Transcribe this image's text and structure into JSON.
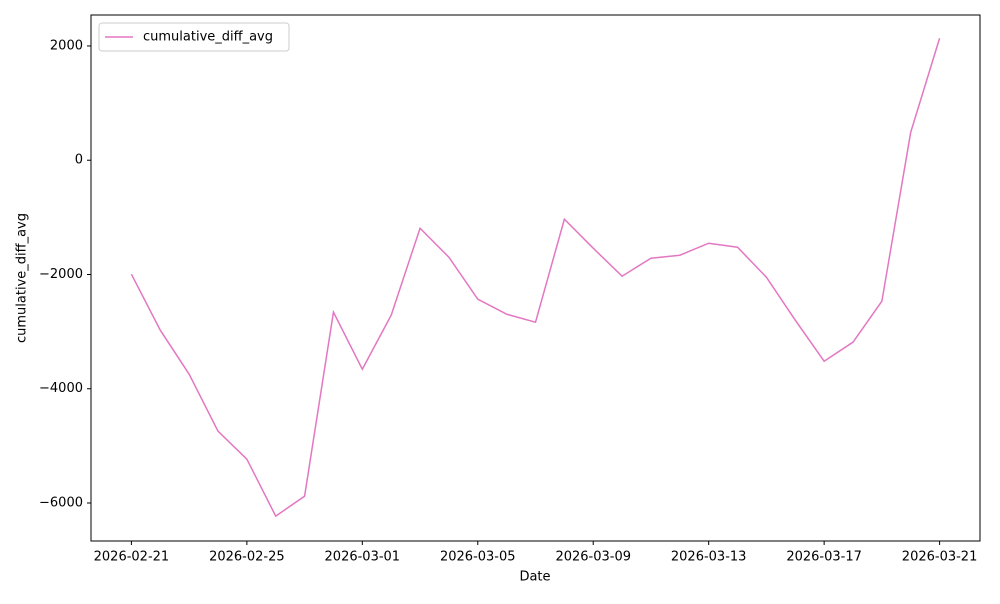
{
  "chart_data": {
    "type": "line",
    "x_label": "Date",
    "y_label": "cumulative_diff_avg",
    "x": [
      "2026-02-21",
      "2026-02-22",
      "2026-02-23",
      "2026-02-24",
      "2026-02-25",
      "2026-02-26",
      "2026-02-27",
      "2026-02-28",
      "2026-03-01",
      "2026-03-02",
      "2026-03-03",
      "2026-03-04",
      "2026-03-05",
      "2026-03-06",
      "2026-03-07",
      "2026-03-08",
      "2026-03-09",
      "2026-03-10",
      "2026-03-11",
      "2026-03-12",
      "2026-03-13",
      "2026-03-14",
      "2026-03-15",
      "2026-03-16",
      "2026-03-17",
      "2026-03-18",
      "2026-03-19",
      "2026-03-20",
      "2026-03-21"
    ],
    "series": [
      {
        "name": "cumulative_diff_avg",
        "color": "#e377c2",
        "values": [
          -1995,
          -2975,
          -3745,
          -4743,
          -5233,
          -6230,
          -5880,
          -2660,
          -3658,
          -2713,
          -1190,
          -1698,
          -2433,
          -2695,
          -2835,
          -1033,
          -1540,
          -2030,
          -1715,
          -1663,
          -1453,
          -1523,
          -2048,
          -2800,
          -3518,
          -3185,
          -2468,
          490,
          2135
        ]
      }
    ],
    "xlim": [
      "2026-02-19T14:24:00Z",
      "2026-03-22T09:36:00Z"
    ],
    "xticks": [
      "2026-02-21",
      "2026-02-25",
      "2026-03-01",
      "2026-03-05",
      "2026-03-09",
      "2026-03-13",
      "2026-03-17",
      "2026-03-21"
    ],
    "ylim": [
      -6665,
      2542
    ],
    "yticks": [
      {
        "value": -6000,
        "label": "−6000"
      },
      {
        "value": -4000,
        "label": "−4000"
      },
      {
        "value": -2000,
        "label": "−2000"
      },
      0,
      2000
    ],
    "legend": "upper left",
    "grid": false
  }
}
